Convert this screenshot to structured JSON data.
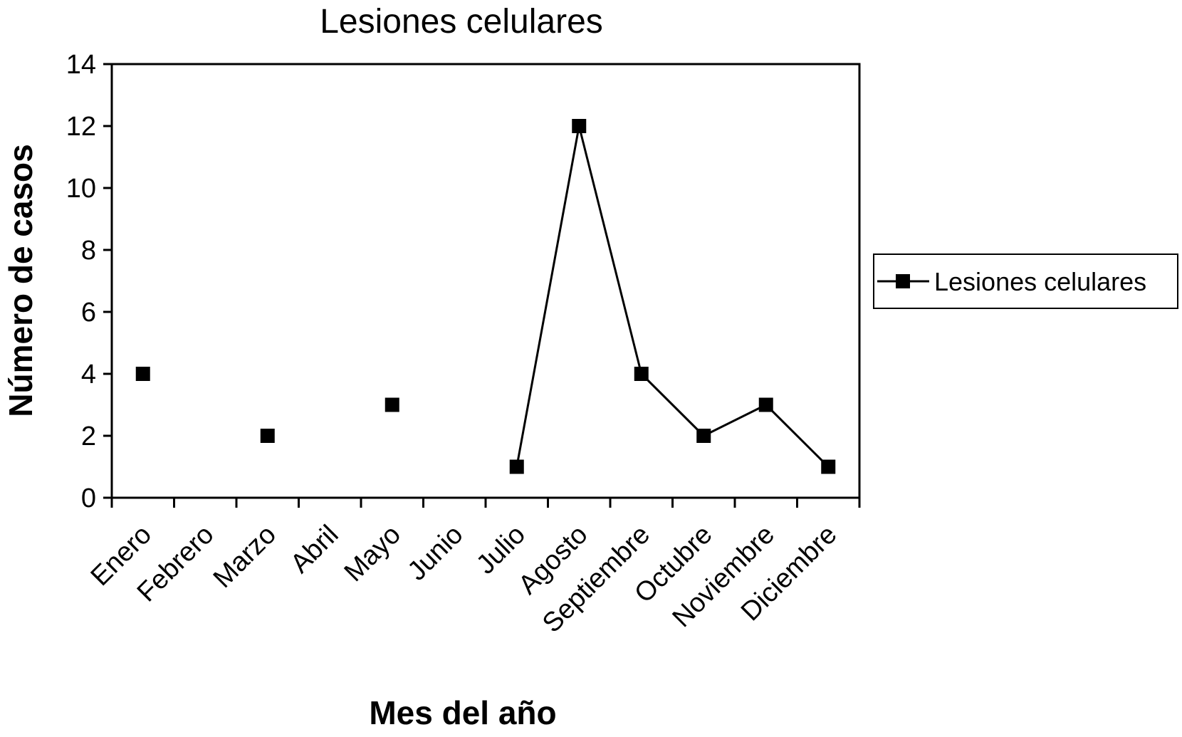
{
  "chart_data": {
    "type": "line",
    "title": "Lesiones celulares",
    "xlabel": "Mes del año",
    "ylabel": "Número de casos",
    "ylim": [
      0,
      14
    ],
    "yticks": [
      "0",
      "2",
      "4",
      "6",
      "8",
      "10",
      "12",
      "14"
    ],
    "categories": [
      "Enero",
      "Febrero",
      "Marzo",
      "Abril",
      "Mayo",
      "Junio",
      "Julio",
      "Agosto",
      "Septiembre",
      "Octubre",
      "Noviembre",
      "Diciembre"
    ],
    "series": [
      {
        "name": "Lesiones celulares",
        "values": [
          4,
          null,
          2,
          null,
          3,
          null,
          1,
          12,
          4,
          2,
          3,
          1
        ]
      }
    ],
    "grid": false,
    "legend_position": "right",
    "colors": {
      "series": "#000000",
      "axis": "#000000",
      "background": "#ffffff"
    }
  }
}
